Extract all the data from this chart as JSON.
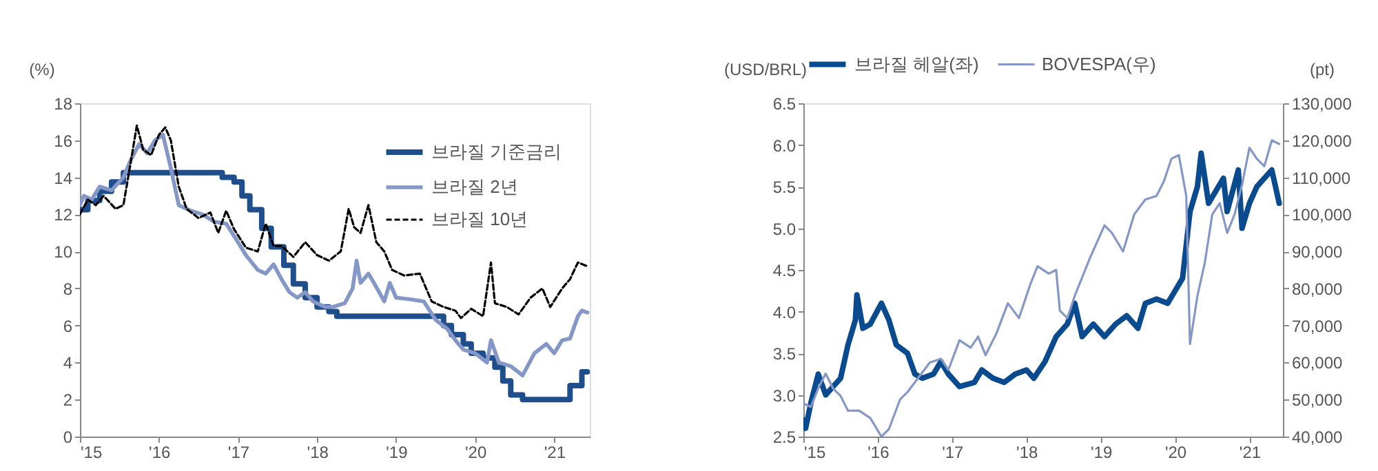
{
  "chart_data": [
    {
      "type": "line",
      "ylabel": "(%)",
      "xlim": [
        2015,
        2021.45
      ],
      "xticks": [
        {
          "value": 2015,
          "label": "'15"
        },
        {
          "value": 2016,
          "label": "'16"
        },
        {
          "value": 2017,
          "label": "'17"
        },
        {
          "value": 2018,
          "label": "'18"
        },
        {
          "value": 2019,
          "label": "'19"
        },
        {
          "value": 2020,
          "label": "'20"
        },
        {
          "value": 2021,
          "label": "'21"
        }
      ],
      "ylim": [
        0,
        18
      ],
      "yticks": [
        0,
        2,
        4,
        6,
        8,
        10,
        12,
        14,
        16,
        18
      ],
      "grid": false,
      "legend": "top right",
      "marker": "none",
      "series": [
        {
          "name": "브라질 기준금리",
          "type": "step",
          "color": "#1f4e8c",
          "line_style": "solid",
          "x": [
            2015.0,
            2015.1,
            2015.25,
            2015.4,
            2015.55,
            2016.8,
            2016.95,
            2017.05,
            2017.15,
            2017.3,
            2017.42,
            2017.58,
            2017.7,
            2017.85,
            2018.0,
            2018.15,
            2018.25,
            2019.6,
            2019.7,
            2019.85,
            2019.95,
            2020.1,
            2020.25,
            2020.35,
            2020.45,
            2020.6,
            2021.2,
            2021.35,
            2021.42
          ],
          "values": [
            12.25,
            12.75,
            13.25,
            13.75,
            14.25,
            14.0,
            13.75,
            13.0,
            12.25,
            11.25,
            10.25,
            9.25,
            8.25,
            7.5,
            7.0,
            6.75,
            6.5,
            6.0,
            5.5,
            5.0,
            4.5,
            4.25,
            3.75,
            3.0,
            2.25,
            2.0,
            2.75,
            3.5,
            3.5
          ]
        },
        {
          "name": "브라질 2년",
          "color": "#8497c6",
          "line_style": "solid",
          "x": [
            2015.0,
            2015.05,
            2015.15,
            2015.25,
            2015.4,
            2015.55,
            2015.65,
            2015.75,
            2015.85,
            2015.95,
            2016.05,
            2016.15,
            2016.25,
            2016.4,
            2016.55,
            2016.7,
            2016.85,
            2017.0,
            2017.1,
            2017.25,
            2017.35,
            2017.45,
            2017.55,
            2017.65,
            2017.75,
            2017.85,
            2017.95,
            2018.1,
            2018.2,
            2018.35,
            2018.45,
            2018.5,
            2018.55,
            2018.65,
            2018.72,
            2018.85,
            2018.92,
            2019.0,
            2019.2,
            2019.35,
            2019.5,
            2019.65,
            2019.75,
            2019.85,
            2020.0,
            2020.15,
            2020.2,
            2020.3,
            2020.45,
            2020.6,
            2020.75,
            2020.9,
            2021.0,
            2021.1,
            2021.2,
            2021.3,
            2021.35,
            2021.42
          ],
          "values": [
            12.5,
            13.0,
            12.8,
            13.5,
            13.3,
            14.0,
            15.0,
            15.8,
            15.3,
            16.0,
            16.3,
            14.5,
            12.5,
            12.2,
            12.0,
            11.6,
            11.5,
            10.5,
            9.8,
            9.0,
            8.8,
            9.3,
            8.5,
            7.8,
            7.5,
            7.8,
            7.3,
            7.0,
            7.0,
            7.2,
            8.0,
            9.5,
            8.3,
            8.8,
            8.3,
            7.3,
            8.3,
            7.5,
            7.4,
            7.3,
            6.3,
            5.8,
            5.2,
            4.7,
            4.5,
            4.0,
            5.2,
            4.0,
            3.8,
            3.3,
            4.5,
            5.0,
            4.5,
            5.2,
            5.3,
            6.5,
            6.8,
            6.7
          ]
        },
        {
          "name": "브라질 10년",
          "color": "#000000",
          "line_style": "dashed",
          "x": [
            2015.0,
            2015.1,
            2015.2,
            2015.3,
            2015.45,
            2015.55,
            2015.65,
            2015.72,
            2015.8,
            2015.9,
            2016.0,
            2016.08,
            2016.15,
            2016.25,
            2016.35,
            2016.5,
            2016.65,
            2016.75,
            2016.85,
            2016.95,
            2017.1,
            2017.25,
            2017.35,
            2017.45,
            2017.55,
            2017.7,
            2017.85,
            2018.0,
            2018.15,
            2018.3,
            2018.4,
            2018.47,
            2018.55,
            2018.65,
            2018.75,
            2018.85,
            2018.95,
            2019.1,
            2019.3,
            2019.45,
            2019.6,
            2019.75,
            2019.82,
            2019.95,
            2020.1,
            2020.2,
            2020.25,
            2020.4,
            2020.55,
            2020.7,
            2020.85,
            2020.95,
            2021.1,
            2021.2,
            2021.3,
            2021.42
          ],
          "values": [
            12.0,
            12.8,
            12.5,
            13.0,
            12.3,
            12.5,
            15.0,
            16.8,
            15.5,
            15.2,
            16.3,
            16.7,
            16.0,
            13.5,
            12.3,
            11.8,
            12.1,
            11.0,
            12.2,
            11.2,
            10.2,
            10.0,
            11.5,
            10.3,
            10.3,
            9.7,
            10.5,
            9.8,
            9.5,
            10.0,
            12.3,
            11.3,
            11.0,
            12.5,
            10.5,
            10.0,
            9.0,
            8.7,
            8.8,
            7.3,
            7.0,
            6.8,
            6.4,
            6.9,
            6.5,
            9.4,
            7.2,
            7.0,
            6.6,
            7.5,
            8.0,
            7.0,
            8.0,
            8.5,
            9.4,
            9.2
          ]
        }
      ]
    },
    {
      "type": "line",
      "ylabel": "(USD/BRL)",
      "y2label": "(pt)",
      "xlim": [
        2015,
        2021.45
      ],
      "xticks": [
        {
          "value": 2015,
          "label": "'15"
        },
        {
          "value": 2016,
          "label": "'16"
        },
        {
          "value": 2017,
          "label": "'17"
        },
        {
          "value": 2018,
          "label": "'18"
        },
        {
          "value": 2019,
          "label": "'19"
        },
        {
          "value": 2020,
          "label": "'20"
        },
        {
          "value": 2021,
          "label": "'21"
        }
      ],
      "ylim": [
        2.5,
        6.5
      ],
      "yticks": [
        2.5,
        {
          "value": 3,
          "label": "3.0"
        },
        3.5,
        {
          "value": 4,
          "label": "4.0"
        },
        4.5,
        {
          "value": 5,
          "label": "5.0"
        },
        5.5,
        {
          "value": 6,
          "label": "6.0"
        },
        6.5
      ],
      "y2lim": [
        40000,
        130000
      ],
      "y2ticks": [
        {
          "value": 40000,
          "label": "40,000"
        },
        {
          "value": 50000,
          "label": "50,000"
        },
        {
          "value": 60000,
          "label": "60,000"
        },
        {
          "value": 70000,
          "label": "70,000"
        },
        {
          "value": 80000,
          "label": "80,000"
        },
        {
          "value": 90000,
          "label": "90,000"
        },
        {
          "value": 100000,
          "label": "100,000"
        },
        {
          "value": 110000,
          "label": "110,000"
        },
        {
          "value": 120000,
          "label": "120,000"
        },
        {
          "value": 130000,
          "label": "130,000"
        }
      ],
      "grid": false,
      "legend": "top",
      "marker": "none",
      "series": [
        {
          "name": "브라질 헤알(좌)",
          "color": "#0a4a8f",
          "line_style": "solid",
          "x": [
            2015.0,
            2015.03,
            2015.1,
            2015.2,
            2015.3,
            2015.4,
            2015.5,
            2015.6,
            2015.7,
            2015.72,
            2015.8,
            2015.9,
            2016.05,
            2016.15,
            2016.25,
            2016.4,
            2016.5,
            2016.6,
            2016.75,
            2016.85,
            2016.95,
            2017.1,
            2017.3,
            2017.4,
            2017.55,
            2017.7,
            2017.85,
            2018.0,
            2018.1,
            2018.25,
            2018.4,
            2018.55,
            2018.65,
            2018.75,
            2018.9,
            2019.05,
            2019.2,
            2019.35,
            2019.5,
            2019.6,
            2019.75,
            2019.9,
            2020.0,
            2020.1,
            2020.2,
            2020.3,
            2020.35,
            2020.45,
            2020.55,
            2020.65,
            2020.7,
            2020.85,
            2020.9,
            2021.0,
            2021.1,
            2021.2,
            2021.3,
            2021.4
          ],
          "values": [
            2.7,
            2.6,
            2.9,
            3.25,
            3.0,
            3.1,
            3.2,
            3.6,
            3.9,
            4.2,
            3.8,
            3.85,
            4.1,
            3.9,
            3.6,
            3.5,
            3.25,
            3.2,
            3.25,
            3.4,
            3.25,
            3.1,
            3.15,
            3.3,
            3.2,
            3.15,
            3.25,
            3.3,
            3.2,
            3.4,
            3.7,
            3.85,
            4.1,
            3.7,
            3.85,
            3.7,
            3.85,
            3.95,
            3.8,
            4.1,
            4.15,
            4.1,
            4.25,
            4.4,
            5.2,
            5.5,
            5.9,
            5.3,
            5.45,
            5.6,
            5.2,
            5.7,
            5.0,
            5.3,
            5.5,
            5.6,
            5.7,
            5.3
          ]
        },
        {
          "name": "BOVESPA(우)",
          "axis": "y2",
          "color": "#8497c6",
          "line_style": "solid",
          "x": [
            2015.0,
            2015.1,
            2015.2,
            2015.3,
            2015.4,
            2015.5,
            2015.6,
            2015.75,
            2015.9,
            2016.05,
            2016.15,
            2016.3,
            2016.4,
            2016.55,
            2016.7,
            2016.85,
            2016.95,
            2017.1,
            2017.25,
            2017.35,
            2017.45,
            2017.6,
            2017.75,
            2017.9,
            2018.05,
            2018.15,
            2018.3,
            2018.4,
            2018.45,
            2018.55,
            2018.65,
            2018.75,
            2018.85,
            2019.05,
            2019.15,
            2019.3,
            2019.45,
            2019.6,
            2019.75,
            2019.85,
            2019.95,
            2020.05,
            2020.15,
            2020.2,
            2020.3,
            2020.4,
            2020.5,
            2020.6,
            2020.7,
            2020.8,
            2020.9,
            2021.0,
            2021.1,
            2021.2,
            2021.3,
            2021.4
          ],
          "values": [
            49000,
            48000,
            53000,
            57000,
            53000,
            51000,
            47000,
            47000,
            45000,
            40000,
            42000,
            50000,
            52000,
            56000,
            60000,
            61000,
            58000,
            66000,
            64000,
            67000,
            62000,
            68000,
            76000,
            72000,
            81000,
            86000,
            84000,
            85000,
            74000,
            72000,
            78000,
            83000,
            88000,
            97000,
            95000,
            90000,
            100000,
            104000,
            105000,
            109000,
            115000,
            116000,
            105000,
            65000,
            78000,
            87000,
            100000,
            103000,
            95000,
            100000,
            108000,
            118000,
            115000,
            113000,
            120000,
            119000
          ]
        }
      ]
    }
  ]
}
